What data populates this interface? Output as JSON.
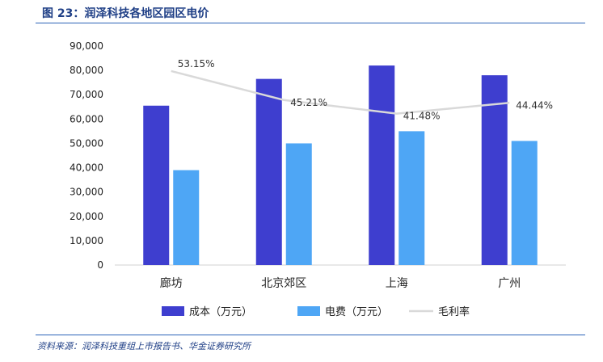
{
  "figure": {
    "title": "图 23：润泽科技各地区园区电价",
    "source": "资料来源：润泽科技重组上市报告书、华金证券研究所"
  },
  "colors": {
    "cost": "#3e3ecf",
    "electricity": "#4ea6f5",
    "margin": "#d9d9d9",
    "rule": "#2b63b8",
    "title": "#1f3f86"
  },
  "chart_data": {
    "type": "bar",
    "categories": [
      "廊坊",
      "北京郊区",
      "上海",
      "广州"
    ],
    "series": [
      {
        "name": "成本（万元）",
        "type": "bar",
        "values": [
          65500,
          76500,
          82000,
          78000
        ]
      },
      {
        "name": "电费（万元）",
        "type": "bar",
        "values": [
          39000,
          50000,
          55000,
          51000
        ]
      },
      {
        "name": "毛利率",
        "type": "line",
        "values": [
          53.15,
          45.21,
          41.48,
          44.44
        ],
        "labels": [
          "53.15%",
          "45.21%",
          "41.48%",
          "44.44%"
        ]
      }
    ],
    "ylim": [
      0,
      90000
    ],
    "yticks": [
      0,
      10000,
      20000,
      30000,
      40000,
      50000,
      60000,
      70000,
      80000,
      90000
    ],
    "ytick_labels": [
      "0",
      "10,000",
      "20,000",
      "30,000",
      "40,000",
      "50,000",
      "60,000",
      "70,000",
      "80,000",
      "90,000"
    ],
    "margin_axis_range": [
      0,
      60
    ],
    "grid": false,
    "legend_position": "bottom"
  }
}
